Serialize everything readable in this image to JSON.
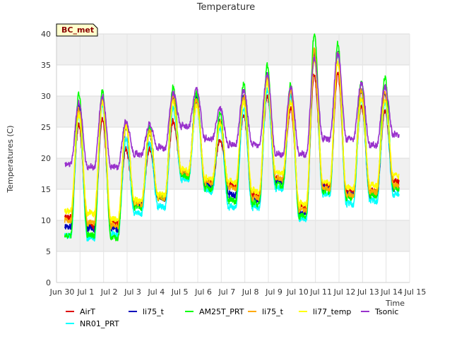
{
  "chart_data": {
    "type": "line",
    "title": "Temperature",
    "xlabel": "Time",
    "ylabel": "Temperatures (C)",
    "badge": "BC_met",
    "ylim": [
      0,
      40
    ],
    "xlim": [
      0,
      15
    ],
    "yticks": [
      0,
      5,
      10,
      15,
      20,
      25,
      30,
      35,
      40
    ],
    "xticks": [
      {
        "v": 0,
        "label": "Jun 30"
      },
      {
        "v": 1,
        "label": "Jul 1"
      },
      {
        "v": 2,
        "label": "Jul 2"
      },
      {
        "v": 3,
        "label": "Jul 3"
      },
      {
        "v": 4,
        "label": "Jul 4"
      },
      {
        "v": 5,
        "label": "Jul 5"
      },
      {
        "v": 6,
        "label": "Jul 6"
      },
      {
        "v": 7,
        "label": "Jul 7"
      },
      {
        "v": 8,
        "label": "Jul 8"
      },
      {
        "v": 9,
        "label": "Jul 9"
      },
      {
        "v": 10,
        "label": "Jul 10"
      },
      {
        "v": 11,
        "label": "Jul 11"
      },
      {
        "v": 12,
        "label": "Jul 12"
      },
      {
        "v": 13,
        "label": "Jul 13"
      },
      {
        "v": 14,
        "label": "Jul 14"
      },
      {
        "v": 15,
        "label": "Jul 15"
      }
    ],
    "grid": true,
    "legend_position": "bottom",
    "x_unit": "days since Jun 30",
    "series": [
      {
        "name": "AirT",
        "color": "#dd0000",
        "min": [
          10.5,
          9.0,
          9.5,
          12.5,
          13.5,
          17.5,
          16.0,
          15.5,
          14.0,
          16.5,
          12.0,
          15.5,
          14.5,
          14.5,
          16.0
        ],
        "max": [
          25.5,
          26.5,
          21.5,
          21.5,
          26.0,
          29.0,
          23.0,
          27.0,
          30.0,
          28.0,
          33.5,
          33.5,
          28.5,
          27.5
        ]
      },
      {
        "name": "NR01_PRT",
        "color": "#00ffff",
        "min": [
          7.5,
          7.0,
          7.5,
          11.0,
          12.0,
          16.5,
          14.5,
          12.0,
          12.0,
          15.0,
          10.0,
          14.0,
          12.5,
          13.0,
          14.0
        ],
        "max": [
          27.0,
          28.5,
          23.0,
          22.5,
          28.0,
          28.5,
          25.0,
          28.0,
          31.0,
          30.0,
          36.0,
          36.5,
          29.5,
          29.0
        ]
      },
      {
        "name": "li75_t",
        "color": "#0000bb",
        "min": [
          9.0,
          8.5,
          8.5,
          12.5,
          13.5,
          17.5,
          15.5,
          14.0,
          13.0,
          16.0,
          11.0,
          15.0,
          14.0,
          14.0,
          15.0
        ],
        "max": [
          28.5,
          29.5,
          25.0,
          24.0,
          29.5,
          30.0,
          26.0,
          30.0,
          33.5,
          31.0,
          37.0,
          37.0,
          31.0,
          30.5
        ]
      },
      {
        "name": "AM25T_PRT",
        "color": "#00ff00",
        "min": [
          7.5,
          7.5,
          7.0,
          12.0,
          13.5,
          17.0,
          15.0,
          13.0,
          12.5,
          15.5,
          10.5,
          14.5,
          13.5,
          14.0,
          15.0
        ],
        "max": [
          30.5,
          31.0,
          26.0,
          25.0,
          31.5,
          30.5,
          27.5,
          32.0,
          35.0,
          32.0,
          40.0,
          38.5,
          32.5,
          33.0
        ]
      },
      {
        "name": "li75_t",
        "color": "#ffaa00",
        "min": [
          10.0,
          9.5,
          9.0,
          12.5,
          13.5,
          17.5,
          16.0,
          15.0,
          13.5,
          16.5,
          11.5,
          15.0,
          14.0,
          14.5,
          15.5
        ],
        "max": [
          28.0,
          29.5,
          25.5,
          24.5,
          30.0,
          29.5,
          26.0,
          30.0,
          33.0,
          31.0,
          37.5,
          37.0,
          31.0,
          30.5
        ]
      },
      {
        "name": "li77_temp",
        "color": "#ffff00",
        "min": [
          11.5,
          11.0,
          10.0,
          13.0,
          14.0,
          18.0,
          16.5,
          16.0,
          14.5,
          17.5,
          12.5,
          16.0,
          15.0,
          15.5,
          17.0
        ],
        "max": [
          27.0,
          29.0,
          25.0,
          24.0,
          29.0,
          28.5,
          25.5,
          29.0,
          32.0,
          29.0,
          36.0,
          35.5,
          29.5,
          29.5
        ]
      },
      {
        "name": "Tsonic",
        "color": "#9932cc",
        "min": [
          19.0,
          18.5,
          18.5,
          20.5,
          21.5,
          25.0,
          23.0,
          22.0,
          22.0,
          20.5,
          20.5,
          23.0,
          23.0,
          22.0,
          23.5
        ],
        "max": [
          29.0,
          30.0,
          26.0,
          25.5,
          30.5,
          31.0,
          28.0,
          31.0,
          33.5,
          31.5,
          36.0,
          37.0,
          32.0,
          31.5
        ]
      }
    ]
  }
}
